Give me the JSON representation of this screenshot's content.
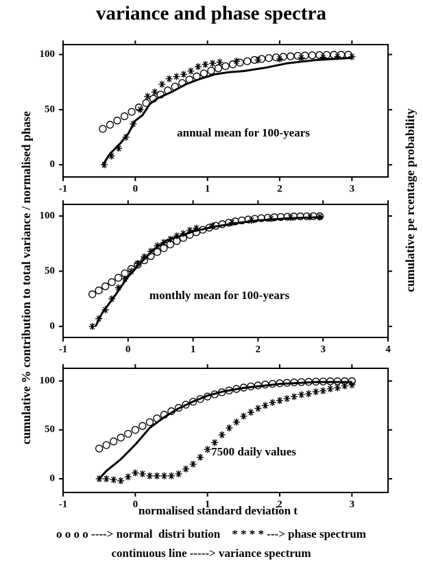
{
  "title": "variance and phase spectra",
  "ylabel": "cumulative % contribution to total variance / normalised phase",
  "y2label": "cumulative pe rcentage probability",
  "xlabel": "normalised standard deviation t",
  "legend_text": [
    "o o o o ----> normal  distri bution    * * * * ---> phase spectrum",
    "continuous line -----> variance spectrum"
  ],
  "chart_data": [
    {
      "type": "line",
      "annotation": "annual mean for 100-years",
      "xlim": [
        -1,
        3.5
      ],
      "xticks": [
        -1,
        0,
        1,
        2,
        3
      ],
      "ylim": [
        -11,
        109
      ],
      "yticks": [
        0,
        50,
        100
      ],
      "series": [
        {
          "marker": "circle",
          "x": [
            -0.45,
            -0.35,
            -0.25,
            -0.15,
            -0.05,
            0.05,
            0.15,
            0.25,
            0.35,
            0.45,
            0.55,
            0.65,
            0.75,
            0.85,
            0.95,
            1.05,
            1.15,
            1.25,
            1.35,
            1.45,
            1.55,
            1.65,
            1.75,
            1.85,
            1.95,
            2.05,
            2.15,
            2.25,
            2.35,
            2.45,
            2.55,
            2.65,
            2.75,
            2.85,
            2.95
          ],
          "values": [
            32.6,
            36.3,
            40.1,
            44,
            48,
            52,
            56,
            59.9,
            63.7,
            67.4,
            70.9,
            74.2,
            77.3,
            80.2,
            82.9,
            85.3,
            87.5,
            89.4,
            91.1,
            92.6,
            93.9,
            95.1,
            96,
            96.8,
            97.4,
            98,
            98.4,
            98.8,
            99.1,
            99.3,
            99.5,
            99.6,
            99.7,
            99.8,
            99.8
          ]
        },
        {
          "marker": "star",
          "x": [
            -0.43,
            -0.33,
            -0.23,
            -0.13,
            -0.03,
            0.07,
            0.17,
            0.27,
            0.37,
            0.47,
            0.57,
            0.67,
            0.77,
            0.87,
            0.97,
            1.07,
            1.17,
            1.4,
            1.7,
            2.0,
            2.3,
            2.6,
            2.8,
            3.0
          ],
          "values": [
            0,
            8,
            15,
            25,
            37,
            50,
            62,
            66,
            73,
            78,
            80,
            82,
            85,
            89,
            91,
            92,
            93,
            94,
            95,
            96,
            97,
            97.5,
            98,
            98
          ]
        },
        {
          "marker": "line",
          "x": [
            -0.45,
            -0.35,
            -0.2,
            -0.1,
            0,
            0.1,
            0.2,
            0.3,
            0.5,
            0.7,
            0.9,
            1.1,
            1.3,
            1.5,
            1.8,
            2.1,
            2.5,
            3.0
          ],
          "values": [
            0,
            10,
            20,
            28,
            40,
            45,
            55,
            60,
            66,
            73,
            78,
            82,
            84,
            85,
            88,
            92,
            95,
            97
          ]
        }
      ]
    },
    {
      "type": "line",
      "annotation": "monthly mean for 100-years",
      "xlim": [
        -1,
        4
      ],
      "xticks": [
        -1,
        0,
        1,
        2,
        3,
        4
      ],
      "ylim": [
        -10,
        110.5
      ],
      "yticks": [
        0,
        50,
        100
      ],
      "series": [
        {
          "marker": "circle",
          "x": [
            -0.55,
            -0.45,
            -0.35,
            -0.25,
            -0.15,
            -0.05,
            0.05,
            0.15,
            0.25,
            0.35,
            0.45,
            0.55,
            0.65,
            0.75,
            0.85,
            0.95,
            1.05,
            1.15,
            1.25,
            1.35,
            1.45,
            1.55,
            1.65,
            1.75,
            1.85,
            1.95,
            2.05,
            2.15,
            2.25,
            2.35,
            2.45,
            2.55,
            2.65,
            2.75,
            2.85,
            2.95
          ],
          "values": [
            29.1,
            32.6,
            36.3,
            40.1,
            44,
            48,
            52,
            56,
            59.9,
            63.7,
            67.4,
            70.9,
            74.2,
            77.3,
            80.2,
            82.9,
            85.3,
            87.5,
            89.4,
            91.1,
            92.6,
            93.9,
            95.1,
            96,
            96.8,
            97.4,
            98,
            98.4,
            98.8,
            99.1,
            99.3,
            99.5,
            99.6,
            99.7,
            99.8,
            99.8
          ]
        },
        {
          "marker": "star",
          "x": [
            -0.55,
            -0.45,
            -0.35,
            -0.25,
            -0.15,
            -0.05,
            0.05,
            0.15,
            0.25,
            0.35,
            0.45,
            0.55,
            0.65,
            0.75,
            0.85,
            0.95,
            1.05,
            1.3,
            1.6,
            1.9,
            2.2,
            2.5,
            2.8,
            2.95
          ],
          "values": [
            0,
            7,
            15,
            25,
            35,
            43,
            50,
            57,
            63,
            68,
            73,
            76,
            79,
            82,
            84,
            87,
            89,
            91,
            94,
            96,
            97.5,
            98.5,
            99,
            99
          ]
        },
        {
          "marker": "line",
          "x": [
            -0.5,
            -0.4,
            -0.2,
            0,
            0.2,
            0.4,
            0.6,
            0.8,
            1.0,
            1.3,
            1.6,
            2.0,
            2.5,
            3.0
          ],
          "values": [
            0,
            12,
            28,
            45,
            58,
            70,
            78,
            82,
            86,
            90,
            93,
            96,
            98,
            99
          ]
        }
      ]
    },
    {
      "type": "line",
      "annotation": "7500 daily values",
      "xlim": [
        -1,
        3.5
      ],
      "xticks": [
        -1,
        0,
        1,
        2,
        3
      ],
      "ylim": [
        -14,
        113
      ],
      "yticks": [
        0,
        50,
        100
      ],
      "series": [
        {
          "marker": "circle",
          "x": [
            -0.5,
            -0.4,
            -0.3,
            -0.2,
            -0.1,
            0,
            0.1,
            0.2,
            0.3,
            0.4,
            0.5,
            0.6,
            0.7,
            0.8,
            0.9,
            1.0,
            1.1,
            1.2,
            1.3,
            1.4,
            1.5,
            1.6,
            1.7,
            1.8,
            1.9,
            2.0,
            2.1,
            2.2,
            2.3,
            2.4,
            2.5,
            2.6,
            2.7,
            2.8,
            2.9,
            3.0
          ],
          "values": [
            30.9,
            34.5,
            38.2,
            42.1,
            46,
            50,
            54,
            57.9,
            61.8,
            65.5,
            69.1,
            72.6,
            75.8,
            78.8,
            81.6,
            84.1,
            86.4,
            88.5,
            90.3,
            91.9,
            93.3,
            94.5,
            95.5,
            96.4,
            97.1,
            97.7,
            98.2,
            98.6,
            98.9,
            99.2,
            99.4,
            99.5,
            99.7,
            99.7,
            99.8,
            99.9
          ]
        },
        {
          "marker": "star",
          "x": [
            -0.5,
            -0.4,
            -0.3,
            -0.2,
            -0.1,
            0,
            0.1,
            0.2,
            0.3,
            0.4,
            0.5,
            0.6,
            0.7,
            0.8,
            0.9,
            1.0,
            1.1,
            1.2,
            1.3,
            1.4,
            1.5,
            1.6,
            1.7,
            1.8,
            1.9,
            2.0,
            2.1,
            2.2,
            2.3,
            2.4,
            2.5,
            2.6,
            2.7,
            2.8,
            2.9,
            3.0
          ],
          "values": [
            0,
            0,
            -1,
            -2,
            2,
            6,
            5,
            3,
            3,
            3,
            3,
            5,
            10,
            15,
            22,
            30,
            37,
            45,
            52,
            58,
            64,
            68,
            72,
            75,
            78,
            80,
            82,
            84,
            86,
            87,
            89,
            90,
            92,
            93,
            95,
            96
          ]
        },
        {
          "marker": "line",
          "x": [
            -0.5,
            -0.4,
            -0.2,
            0,
            0.2,
            0.4,
            0.6,
            0.8,
            1.0,
            1.2,
            1.5,
            2.0,
            2.5,
            3.0
          ],
          "values": [
            0,
            8,
            20,
            35,
            52,
            63,
            72,
            79,
            85,
            89,
            93,
            97,
            99,
            99
          ]
        }
      ]
    }
  ]
}
